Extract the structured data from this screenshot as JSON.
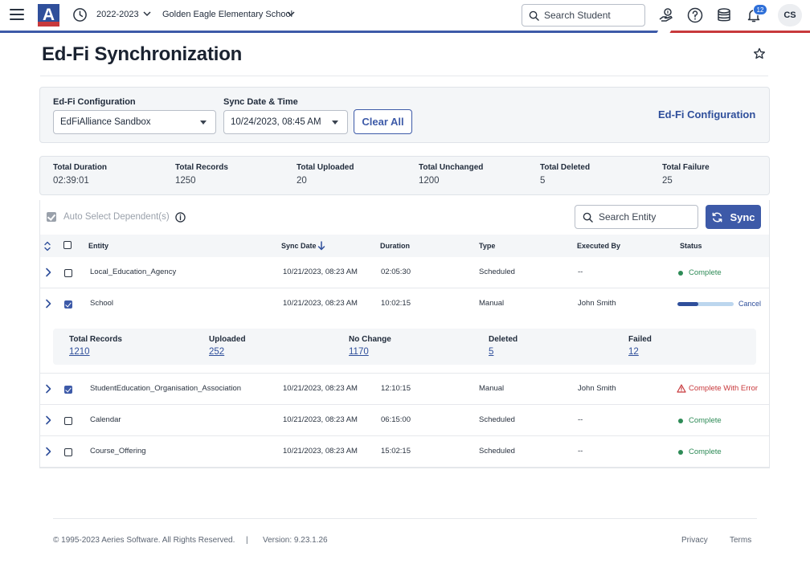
{
  "header": {
    "school_year": "2022-2023",
    "school_name": "Golden Eagle Elementary School",
    "search_placeholder": "Search Student",
    "notification_count": "12",
    "user_initials": "CS",
    "logo_letter": "A",
    "icons": [
      "menu-icon",
      "clock-icon",
      "chevron-down-icon",
      "search-icon",
      "hand-coin-icon",
      "help-icon",
      "database-icon",
      "bell-icon"
    ],
    "accent_colors": {
      "primary": "#3d5aa8",
      "secondary": "#c8393c"
    }
  },
  "page": {
    "title": "Ed-Fi Synchronization"
  },
  "filters": {
    "config_label": "Ed-Fi Configuration",
    "config_value": "EdFiAlliance Sandbox",
    "date_label": "Sync Date & Time",
    "date_value": "10/24/2023, 08:45 AM",
    "clear_label": "Clear All",
    "config_link": "Ed-Fi Configuration"
  },
  "totals": [
    {
      "label": "Total Duration",
      "value": "02:39:01"
    },
    {
      "label": "Total Records",
      "value": "1250"
    },
    {
      "label": "Total Uploaded",
      "value": "20"
    },
    {
      "label": "Total Unchanged",
      "value": "1200"
    },
    {
      "label": "Total Deleted",
      "value": "5"
    },
    {
      "label": "Total Failure",
      "value": "25"
    }
  ],
  "toolbar": {
    "auto_select_label": "Auto Select Dependent(s)",
    "search_placeholder": "Search Entity",
    "sync_label": "Sync"
  },
  "table": {
    "columns": {
      "entity": "Entity",
      "sync_date": "Sync Date",
      "duration": "Duration",
      "type": "Type",
      "executed_by": "Executed By",
      "status": "Status"
    },
    "rows": [
      {
        "entity": "Local_Education_Agency",
        "sync_date": "10/21/2023, 08:23 AM",
        "duration": "02:05:30",
        "type": "Scheduled",
        "executed_by": "--",
        "status": "Complete",
        "checked": false
      },
      {
        "entity": "School",
        "sync_date": "10/21/2023, 08:23 AM",
        "duration": "10:02:15",
        "type": "Manual",
        "executed_by": "John Smith",
        "status": "In Progress",
        "progress": 0.37,
        "cancel_label": "Cancel",
        "checked": true
      },
      {
        "entity": "StudentEducation_Organisation_Association",
        "sync_date": "10/21/2023, 08:23 AM",
        "duration": "12:10:15",
        "type": "Manual",
        "executed_by": "John Smith",
        "status": "Complete With Error",
        "checked": true
      },
      {
        "entity": "Calendar",
        "sync_date": "10/21/2023, 08:23 AM",
        "duration": "06:15:00",
        "type": "Scheduled",
        "executed_by": "--",
        "status": "Complete",
        "checked": false
      },
      {
        "entity": "Course_Offering",
        "sync_date": "10/21/2023, 08:23 AM",
        "duration": "15:02:15",
        "type": "Scheduled",
        "executed_by": "--",
        "status": "Complete",
        "checked": false
      }
    ],
    "expanded_detail": [
      {
        "label": "Total Records",
        "value": "1210"
      },
      {
        "label": "Uploaded",
        "value": "252"
      },
      {
        "label": "No Change",
        "value": "1170"
      },
      {
        "label": "Deleted",
        "value": "5"
      },
      {
        "label": "Failed",
        "value": "12"
      }
    ]
  },
  "footer": {
    "copyright": "© 1995-2023 Aeries Software. All Rights Reserved.",
    "separator": "|",
    "version": "Version: 9.23.1.26",
    "privacy": "Privacy",
    "terms": "Terms"
  }
}
